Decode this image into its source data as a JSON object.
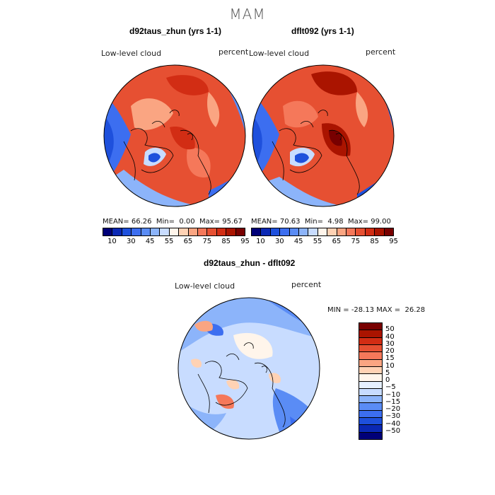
{
  "figure": {
    "season_title": "MAM"
  },
  "panels": {
    "left": {
      "title": "d92taus_zhun (yrs 1-1)",
      "variable_label": "Low-level cloud",
      "units": "percent",
      "mean_label": "MEAN=",
      "mean": "66.26",
      "min_label": "Min=",
      "min": "0.00",
      "max_label": "Max=",
      "max": "95.67"
    },
    "right": {
      "title": "dflt092 (yrs 1-1)",
      "variable_label": "Low-level cloud",
      "units": "percent",
      "mean_label": "MEAN=",
      "mean": "70.63",
      "min_label": "Min=",
      "min": "4.98",
      "max_label": "Max=",
      "max": "99.00"
    },
    "diff": {
      "title": "d92taus_zhun - dflt092",
      "variable_label": "Low-level cloud",
      "units": "percent",
      "min_label": "MIN =",
      "min": "-28.13",
      "max_label": "MAX =",
      "max": "26.28"
    }
  },
  "colorbar_abs": {
    "colors": [
      "#000078",
      "#0a28b4",
      "#1e50dc",
      "#3c6ef0",
      "#5a8cf5",
      "#8cb4fa",
      "#c8dcff",
      "#fff5eb",
      "#ffd2b4",
      "#faa582",
      "#f5785a",
      "#e65032",
      "#d22d14",
      "#aa1400",
      "#780000"
    ],
    "tick_labels": [
      "10",
      "30",
      "45",
      "55",
      "65",
      "75",
      "85",
      "95"
    ]
  },
  "colorbar_diff": {
    "colors": [
      "#780000",
      "#aa1400",
      "#d22d14",
      "#e65032",
      "#f5785a",
      "#faa582",
      "#ffd2b4",
      "#fff5eb",
      "#e6f0ff",
      "#c8dcff",
      "#8cb4fa",
      "#5a8cf5",
      "#3c6ef0",
      "#1e50dc",
      "#0a28b4",
      "#000078"
    ],
    "tick_labels": [
      "50",
      "40",
      "30",
      "20",
      "15",
      "10",
      "5",
      "0",
      "−5",
      "−10",
      "−15",
      "−20",
      "−30",
      "−40",
      "−50"
    ]
  }
}
